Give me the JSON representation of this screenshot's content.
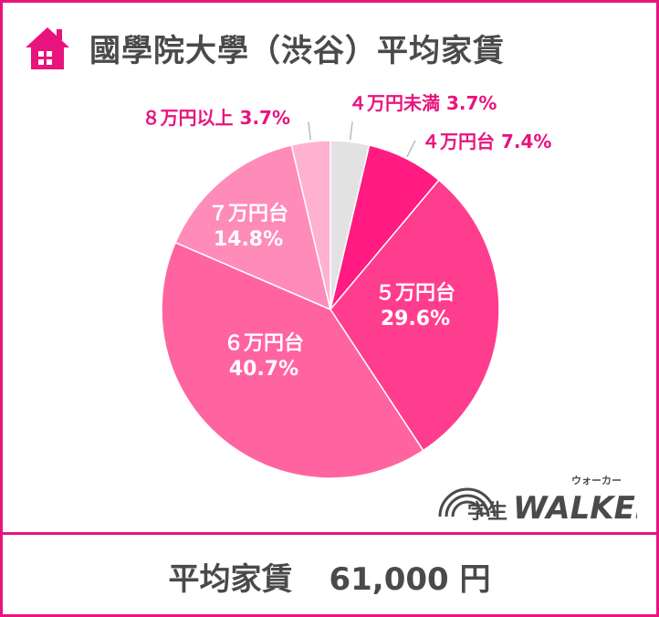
{
  "header": {
    "title": "國學院大學（渋谷）平均家賃",
    "icon": "house-icon"
  },
  "chart_data": {
    "type": "pie",
    "title": "國學院大學（渋谷）平均家賃",
    "slices": [
      {
        "label": "４万円未満",
        "value": 3.7,
        "text": "3.7%",
        "color": "#e2e2e2"
      },
      {
        "label": "４万円台",
        "value": 7.4,
        "text": "7.4%",
        "color": "#ff1b82"
      },
      {
        "label": "５万円台",
        "value": 29.6,
        "text": "29.6%",
        "color": "#ff3d8e"
      },
      {
        "label": "６万円台",
        "value": 40.7,
        "text": "40.7%",
        "color": "#ff64a0"
      },
      {
        "label": "７万円台",
        "value": 14.8,
        "text": "14.8%",
        "color": "#ff8bb8"
      },
      {
        "label": "８万円以上",
        "value": 3.7,
        "text": "3.7%",
        "color": "#ffb2cf"
      }
    ],
    "legend": "none"
  },
  "summary": {
    "label": "平均家賃",
    "value": "61,000 円"
  },
  "logo": {
    "brand": "学生",
    "name": "WALKER",
    "ruby": "ウォーカー"
  },
  "colors": {
    "accent": "#e8147e",
    "text": "#4a4a4a",
    "label_pink": "#e8147e"
  }
}
